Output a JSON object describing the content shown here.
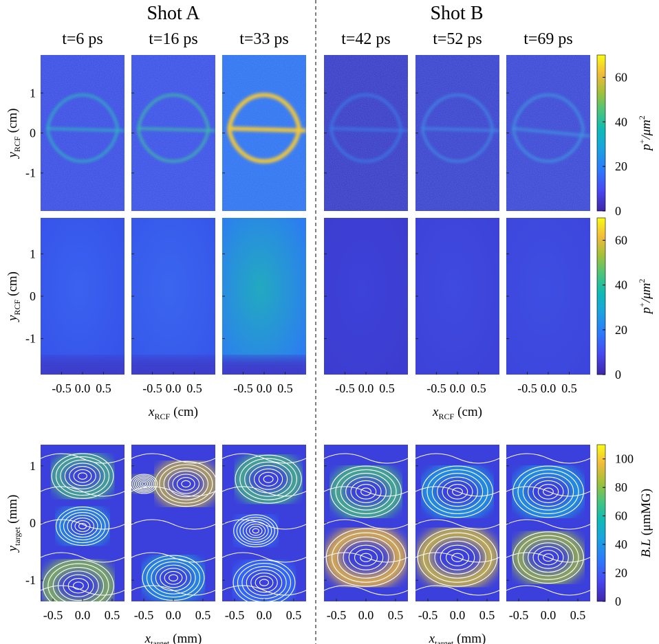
{
  "figure": {
    "shots": [
      "Shot A",
      "Shot B"
    ],
    "times": [
      "t=6 ps",
      "t=16 ps",
      "t=33 ps",
      "t=42 ps",
      "t=52 ps",
      "t=69 ps"
    ],
    "rows": [
      {
        "ylabel": {
          "symbol": "y",
          "sub": "RCF",
          "unit": "(cm)"
        },
        "ylim": [
          -1.95,
          1.95
        ],
        "yticks": [
          -1,
          0,
          1
        ],
        "colorbar": {
          "label": {
            "symbol": "p",
            "sup": "+",
            "unit": "/μm",
            "sup2": "2"
          },
          "lim": [
            0,
            70
          ],
          "ticks": [
            0,
            20,
            40,
            60
          ]
        }
      },
      {
        "ylabel": {
          "symbol": "y",
          "sub": "RCF",
          "unit": "(cm)"
        },
        "ylim": [
          -1.85,
          1.85
        ],
        "yticks": [
          -1,
          0,
          1
        ],
        "xlabel": {
          "symbol": "x",
          "sub": "RCF",
          "unit": "(cm)"
        },
        "xlim": [
          -1,
          1
        ],
        "xticks": [
          -0.5,
          {
            "value": 0,
            "label": "0.0"
          },
          0.5
        ],
        "colorbar": {
          "label": {
            "symbol": "p",
            "sup": "+",
            "unit": "/μm",
            "sup2": "2"
          },
          "lim": [
            0,
            70
          ],
          "ticks": [
            0,
            20,
            40,
            60
          ]
        }
      },
      {
        "ylabel": {
          "symbol": "y",
          "sub": "target",
          "unit": "(mm)"
        },
        "ylim": [
          -1.37,
          1.37
        ],
        "yticks": [
          -1,
          0,
          1
        ],
        "xlabel": {
          "symbol": "x",
          "sub": "target",
          "unit": "(mm)"
        },
        "xlim": [
          -0.71,
          0.71
        ],
        "xticks": [
          -0.5,
          {
            "value": 0,
            "label": "0.0"
          },
          0.5
        ],
        "colorbar": {
          "label": {
            "symbol": "B.L",
            "unit": "(μmMG)"
          },
          "lim": [
            0,
            110
          ],
          "ticks": [
            0,
            20,
            40,
            60,
            80,
            100
          ]
        }
      }
    ]
  }
}
